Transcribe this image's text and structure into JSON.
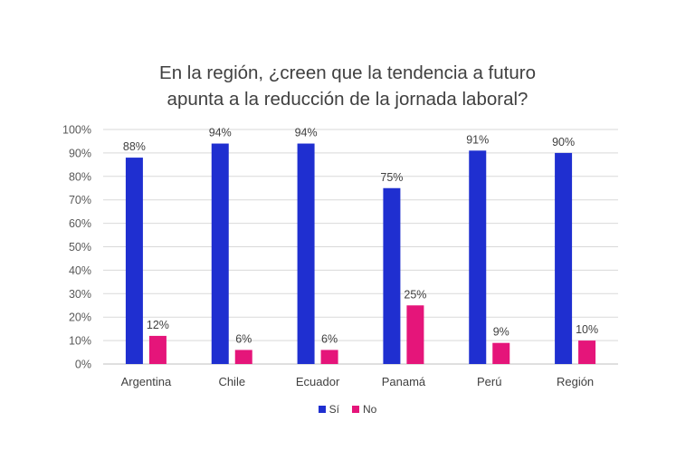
{
  "chart_data": {
    "type": "bar",
    "title_lines": [
      "En la región, ¿creen que la tendencia a futuro",
      "apunta a la reducción de la jornada laboral?"
    ],
    "categories": [
      "Argentina",
      "Chile",
      "Ecuador",
      "Panamá",
      "Perú",
      "Región"
    ],
    "series": [
      {
        "name": "Sí",
        "color": "#1f2fd0",
        "values": [
          88,
          94,
          94,
          75,
          91,
          90
        ]
      },
      {
        "name": "No",
        "color": "#e5157a",
        "values": [
          12,
          6,
          6,
          25,
          9,
          10
        ]
      }
    ],
    "ylim": [
      0,
      100
    ],
    "yticks": [
      "0%",
      "10%",
      "20%",
      "30%",
      "40%",
      "50%",
      "60%",
      "70%",
      "80%",
      "90%",
      "100%"
    ],
    "value_suffix": "%",
    "grid": true,
    "legend_position": "bottom"
  }
}
